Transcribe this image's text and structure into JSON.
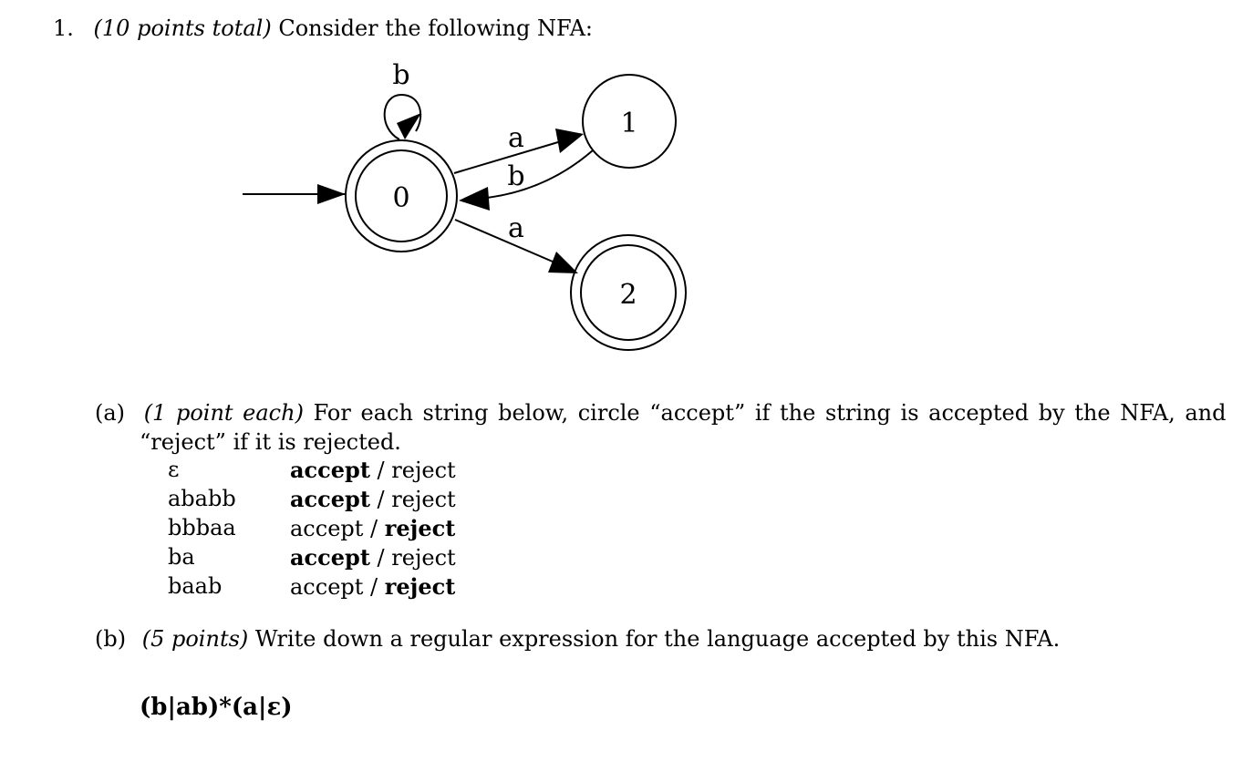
{
  "question": {
    "number": "1.",
    "points": "(10 points total)",
    "text": "Consider the following NFA:"
  },
  "nfa": {
    "states": [
      "0",
      "1",
      "2"
    ],
    "labels": {
      "self_loop": "b",
      "edge_0_1": "a",
      "edge_1_0": "b",
      "edge_0_2": "a"
    }
  },
  "part_a": {
    "label": "(a)",
    "points": "(1 point each)",
    "text_line1": "For each string below, circle “accept” if the string is accepted by the NFA, and",
    "text_line2": "“reject” if it is rejected.",
    "rows": [
      {
        "string": "ε",
        "accept": "accept",
        "sep": " / ",
        "reject": "reject",
        "chosen": "accept"
      },
      {
        "string": "ababb",
        "accept": "accept",
        "sep": " / ",
        "reject": "reject",
        "chosen": "accept"
      },
      {
        "string": "bbbaa",
        "accept": "accept",
        "sep": " / ",
        "reject": "reject",
        "chosen": "reject"
      },
      {
        "string": "ba",
        "accept": "accept",
        "sep": " / ",
        "reject": "reject",
        "chosen": "accept"
      },
      {
        "string": "baab",
        "accept": "accept",
        "sep": " / ",
        "reject": "reject",
        "chosen": "reject"
      }
    ]
  },
  "part_b": {
    "label": "(b)",
    "points": "(5 points)",
    "text": "Write down a regular expression for the language accepted by this NFA.",
    "answer": "(b|ab)*(a|ε)"
  }
}
